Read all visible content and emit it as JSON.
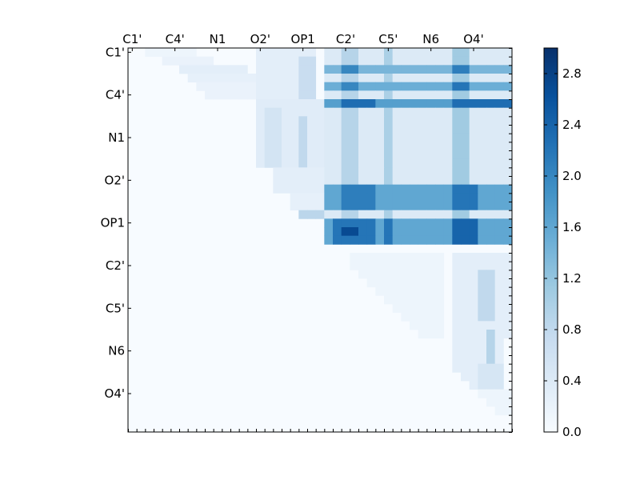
{
  "chart_data": {
    "type": "heatmap",
    "title": "",
    "xlabel": "",
    "ylabel": "",
    "matrix_size": 45,
    "row_labels": [
      "C1'",
      "C4'",
      "N1",
      "O2'",
      "OP1",
      "C2'",
      "C5'",
      "N6",
      "O4'"
    ],
    "col_labels": [
      "C1'",
      "C4'",
      "N1",
      "O2'",
      "OP1",
      "C2'",
      "C5'",
      "N6",
      "O4'"
    ],
    "label_positions": [
      0,
      5,
      10,
      15,
      20,
      25,
      30,
      35,
      40
    ],
    "x_ticks_top": true,
    "grid": false,
    "colormap": "Blues",
    "colorbar": {
      "min": 0.0,
      "max": 3.0,
      "ticks": [
        "0.0",
        "0.4",
        "0.8",
        "1.2",
        "1.6",
        "2.0",
        "2.4",
        "2.8"
      ],
      "tick_values": [
        0.0,
        0.4,
        0.8,
        1.2,
        1.6,
        2.0,
        2.4,
        2.8
      ],
      "colors": [
        "#f7fbff",
        "#deebf7",
        "#c6dbef",
        "#9ecae1",
        "#6baed6",
        "#4292c6",
        "#2171b5",
        "#08519c",
        "#08306b"
      ]
    },
    "cell_blocks": [
      {
        "r0": 0,
        "r1": 0,
        "c0": 2,
        "c1": 7,
        "v": 0.15
      },
      {
        "r0": 1,
        "r1": 1,
        "c0": 4,
        "c1": 9,
        "v": 0.2
      },
      {
        "r0": 2,
        "r1": 2,
        "c0": 6,
        "c1": 13,
        "v": 0.3
      },
      {
        "r0": 3,
        "r1": 3,
        "c0": 7,
        "c1": 14,
        "v": 0.25
      },
      {
        "r0": 4,
        "r1": 4,
        "c0": 8,
        "c1": 15,
        "v": 0.2
      },
      {
        "r0": 5,
        "r1": 5,
        "c0": 9,
        "c1": 16,
        "v": 0.2
      },
      {
        "r0": 0,
        "r1": 5,
        "c0": 15,
        "c1": 21,
        "v": 0.3
      },
      {
        "r0": 1,
        "r1": 5,
        "c0": 20,
        "c1": 21,
        "v": 0.7
      },
      {
        "r0": 6,
        "r1": 13,
        "c0": 15,
        "c1": 23,
        "v": 0.35
      },
      {
        "r0": 7,
        "r1": 13,
        "c0": 16,
        "c1": 17,
        "v": 0.55
      },
      {
        "r0": 8,
        "r1": 13,
        "c0": 20,
        "c1": 20,
        "v": 0.8
      },
      {
        "r0": 14,
        "r1": 16,
        "c0": 17,
        "c1": 23,
        "v": 0.3
      },
      {
        "r0": 17,
        "r1": 18,
        "c0": 19,
        "c1": 23,
        "v": 0.25
      },
      {
        "r0": 19,
        "r1": 19,
        "c0": 20,
        "c1": 22,
        "v": 0.85
      },
      {
        "r0": 0,
        "r1": 19,
        "c0": 23,
        "c1": 44,
        "v": 0.4
      },
      {
        "r0": 0,
        "r1": 19,
        "c0": 25,
        "c1": 26,
        "v": 0.9
      },
      {
        "r0": 0,
        "r1": 19,
        "c0": 30,
        "c1": 30,
        "v": 1.0
      },
      {
        "r0": 0,
        "r1": 19,
        "c0": 38,
        "c1": 39,
        "v": 1.1
      },
      {
        "r0": 2,
        "r1": 2,
        "c0": 23,
        "c1": 44,
        "v": 1.4
      },
      {
        "r0": 2,
        "r1": 2,
        "c0": 25,
        "c1": 26,
        "v": 2.0
      },
      {
        "r0": 2,
        "r1": 2,
        "c0": 38,
        "c1": 39,
        "v": 2.1
      },
      {
        "r0": 4,
        "r1": 4,
        "c0": 23,
        "c1": 44,
        "v": 1.5
      },
      {
        "r0": 4,
        "r1": 4,
        "c0": 25,
        "c1": 26,
        "v": 2.0
      },
      {
        "r0": 4,
        "r1": 4,
        "c0": 38,
        "c1": 39,
        "v": 2.2
      },
      {
        "r0": 6,
        "r1": 6,
        "c0": 23,
        "c1": 44,
        "v": 1.7
      },
      {
        "r0": 6,
        "r1": 6,
        "c0": 25,
        "c1": 28,
        "v": 2.3
      },
      {
        "r0": 6,
        "r1": 6,
        "c0": 38,
        "c1": 44,
        "v": 2.3
      },
      {
        "r0": 16,
        "r1": 18,
        "c0": 23,
        "c1": 44,
        "v": 1.6
      },
      {
        "r0": 16,
        "r1": 18,
        "c0": 25,
        "c1": 28,
        "v": 2.1
      },
      {
        "r0": 16,
        "r1": 18,
        "c0": 38,
        "c1": 40,
        "v": 2.2
      },
      {
        "r0": 20,
        "r1": 22,
        "c0": 23,
        "c1": 44,
        "v": 1.6
      },
      {
        "r0": 20,
        "r1": 22,
        "c0": 24,
        "c1": 28,
        "v": 2.2
      },
      {
        "r0": 21,
        "r1": 21,
        "c0": 25,
        "c1": 26,
        "v": 2.7
      },
      {
        "r0": 21,
        "r1": 21,
        "c0": 38,
        "c1": 39,
        "v": 3.0
      },
      {
        "r0": 20,
        "r1": 22,
        "c0": 38,
        "c1": 40,
        "v": 2.4
      },
      {
        "r0": 20,
        "r1": 22,
        "c0": 30,
        "c1": 30,
        "v": 2.2
      },
      {
        "r0": 24,
        "r1": 33,
        "c0": 26,
        "c1": 36,
        "v": 0.15
      },
      {
        "r0": 24,
        "r1": 33,
        "c0": 38,
        "c1": 44,
        "v": 0.3
      },
      {
        "r0": 26,
        "r1": 31,
        "c0": 41,
        "c1": 42,
        "v": 0.8
      },
      {
        "r0": 33,
        "r1": 40,
        "c0": 38,
        "c1": 43,
        "v": 0.3
      },
      {
        "r0": 33,
        "r1": 40,
        "c0": 42,
        "c1": 42,
        "v": 0.9
      },
      {
        "r0": 37,
        "r1": 39,
        "c0": 41,
        "c1": 43,
        "v": 0.5
      },
      {
        "r0": 40,
        "r1": 42,
        "c0": 40,
        "c1": 44,
        "v": 0.15
      }
    ]
  }
}
